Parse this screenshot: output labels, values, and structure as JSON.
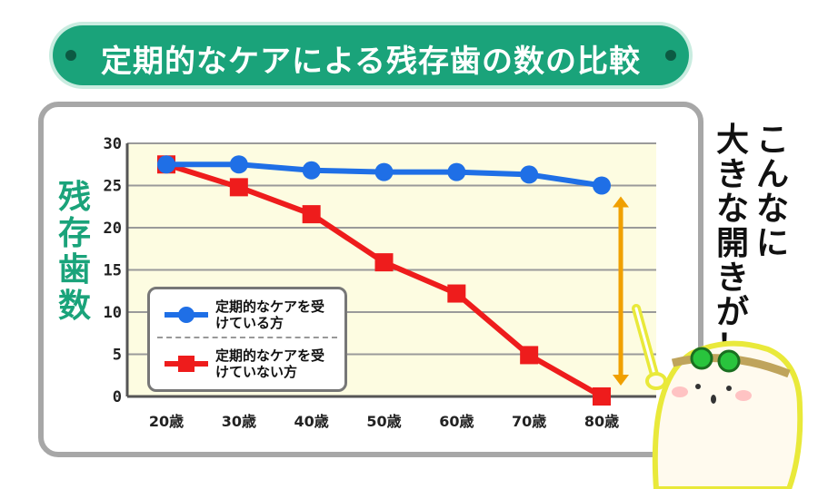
{
  "title": "定期的なケアによる残存歯の数の比較",
  "ylabel_chars": [
    "残",
    "存",
    "歯",
    "数"
  ],
  "side_comment": {
    "col1": [
      "こ",
      "ん",
      "な",
      "に"
    ],
    "col2": [
      "大",
      "き",
      "な",
      "開",
      "き",
      "が",
      "！"
    ]
  },
  "colors": {
    "title_bg": "#1aa37a",
    "ylabel": "#1aa37a",
    "plot_bg": "#fdfce1",
    "series1": "#1f6fe6",
    "series2": "#ee1c1c",
    "arrow": "#f0a000"
  },
  "chart_data": {
    "type": "line",
    "title": "定期的なケアによる残存歯の数の比較",
    "ylabel": "残存歯数",
    "xlabel": "",
    "categories": [
      "20歳",
      "30歳",
      "40歳",
      "50歳",
      "60歳",
      "70歳",
      "80歳"
    ],
    "ylim": [
      0,
      30
    ],
    "yticks": [
      "0",
      "5",
      "10",
      "15",
      "20",
      "25",
      "30"
    ],
    "grid": true,
    "legend_position": "bottom-left",
    "series": [
      {
        "name": "定期的なケアを受けている方",
        "marker": "circle",
        "values": [
          27.5,
          27.5,
          26.8,
          26.6,
          26.6,
          26.3,
          25.0
        ]
      },
      {
        "name": "定期的なケアを受けていない方",
        "marker": "square",
        "values": [
          27.5,
          24.8,
          21.6,
          15.9,
          12.2,
          4.9,
          0
        ]
      }
    ]
  }
}
